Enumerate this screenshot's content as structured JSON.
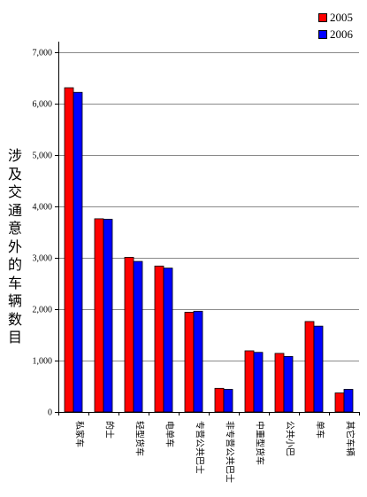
{
  "chart_data": {
    "type": "bar",
    "categories": [
      "私家车",
      "的士",
      "轻型货车",
      "电单车",
      "专营公共巴士",
      "非专营公共巴士",
      "中重型货车",
      "公共小巴",
      "单车",
      "其它车辆"
    ],
    "series": [
      {
        "name": "2005",
        "color": "#ff0000",
        "values": [
          6310,
          3760,
          3010,
          2840,
          1940,
          460,
          1190,
          1140,
          1760,
          370
        ]
      },
      {
        "name": "2006",
        "color": "#0000ff",
        "values": [
          6220,
          3750,
          2930,
          2800,
          1960,
          440,
          1160,
          1080,
          1670,
          440
        ]
      }
    ],
    "ylabel": "涉及交通意外的车辆数目",
    "xlabel": "",
    "ylim": [
      0,
      7000
    ],
    "yticks": [
      0,
      1000,
      2000,
      3000,
      4000,
      5000,
      6000,
      7000
    ],
    "ytick_labels": [
      "0",
      "1,000",
      "2,000",
      "3,000",
      "4,000",
      "5,000",
      "6,000",
      "7,000"
    ],
    "grid": true,
    "legend": "top-right"
  }
}
